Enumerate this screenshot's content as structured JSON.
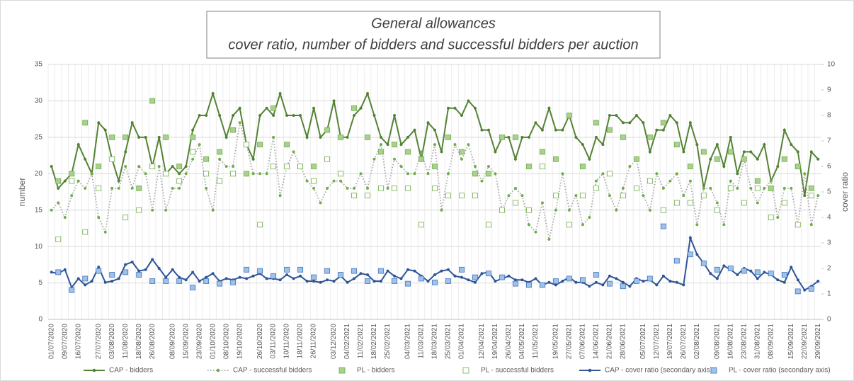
{
  "chart_data": {
    "type": "line",
    "title": [
      "General allowances",
      "cover ratio, number of bidders and successful bidders per auction"
    ],
    "y_label": "number",
    "y2_label": "cover ratio",
    "ylim": [
      0,
      35
    ],
    "yticks": [
      0,
      5,
      10,
      15,
      20,
      25,
      30,
      35
    ],
    "y2lim": [
      0,
      10
    ],
    "y2ticks": [
      0,
      1,
      2,
      3,
      4,
      5,
      6,
      7,
      8,
      9,
      10
    ],
    "grid": true,
    "legend": "bottom",
    "categories": [
      "01/07/2020",
      null,
      "09/07/2020",
      null,
      "16/07/2020",
      null,
      null,
      "27/07/2020",
      null,
      "03/08/2020",
      null,
      "11/08/2020",
      null,
      "18/08/2020",
      null,
      "26/08/2020",
      null,
      null,
      "08/09/2020",
      null,
      "15/09/2020",
      null,
      "23/09/2020",
      null,
      "01/10/2020",
      null,
      "08/10/2020",
      null,
      "19/10/2020",
      null,
      null,
      "26/10/2020",
      null,
      "03/11/2020",
      null,
      "10/11/2020",
      null,
      "18/11/2020",
      null,
      "26/11/2020",
      null,
      null,
      "03/12/2020",
      null,
      "04/02/2021",
      null,
      "11/02/2021",
      null,
      "18/02/2021",
      null,
      "25/02/2021",
      null,
      null,
      "04/03/2021",
      null,
      "11/03/2021",
      null,
      "18/03/2021",
      null,
      "25/03/2021",
      null,
      "01/04/2021",
      null,
      null,
      "12/04/2021",
      null,
      "19/04/2021",
      null,
      "26/04/2021",
      null,
      "04/05/2021",
      null,
      "11/05/2021",
      null,
      null,
      "19/05/2021",
      null,
      "27/05/2021",
      null,
      "07/06/2021",
      null,
      "14/06/2021",
      null,
      "21/06/2021",
      null,
      "28/06/2021",
      null,
      null,
      "05/07/2021",
      null,
      "12/07/2021",
      null,
      "19/07/2021",
      null,
      "26/07/2021",
      null,
      "02/08/2021",
      null,
      null,
      "09/08/2021",
      null,
      "16/08/2021",
      null,
      "23/08/2021",
      null,
      "31/08/2021",
      null,
      "08/09/2021",
      null,
      null,
      "15/09/2021",
      null,
      "22/09/2021",
      null,
      "29/09/2021"
    ],
    "series": [
      {
        "name": "CAP - bidders",
        "color": "#548235",
        "line": "solid",
        "marker": "circle",
        "marker_fill": "#548235",
        "values": [
          21,
          18,
          19,
          20,
          24,
          22,
          20,
          27,
          26,
          22,
          19,
          23,
          27,
          25,
          25,
          21,
          25,
          20,
          21,
          20,
          21,
          26,
          28,
          28,
          31,
          28,
          25,
          28,
          29,
          24,
          22,
          28,
          29,
          28,
          31,
          28,
          28,
          28,
          25,
          29,
          25,
          26,
          30,
          25,
          25,
          28,
          29,
          31,
          28,
          25,
          24,
          28,
          24,
          25,
          26,
          22,
          27,
          26,
          23,
          29,
          29,
          28,
          30,
          29,
          26,
          26,
          23,
          25,
          25,
          22,
          25,
          25,
          27,
          26,
          29,
          26,
          26,
          28,
          25,
          24,
          22,
          25,
          24,
          28,
          28,
          27,
          27,
          28,
          27,
          23,
          26,
          26,
          28,
          27,
          23,
          27,
          24,
          18,
          22,
          24,
          21,
          25,
          20,
          23,
          23,
          22,
          24,
          19,
          21,
          26,
          24,
          23,
          17,
          23,
          22
        ]
      },
      {
        "name": "CAP - successful bidders",
        "color": "#70ad47",
        "line_color": "#a6a6a6",
        "line": "dotted",
        "marker": "circle",
        "marker_fill": "#70ad47",
        "values": [
          15,
          16,
          14,
          17,
          19,
          18,
          20,
          14,
          12,
          18,
          18,
          21,
          18,
          21,
          20,
          15,
          21,
          15,
          18,
          18,
          20,
          22,
          24,
          18,
          15,
          22,
          21,
          21,
          27,
          24,
          20,
          20,
          20,
          25,
          17,
          21,
          23,
          21,
          19,
          18,
          16,
          18,
          19,
          19,
          18,
          18,
          20,
          18,
          22,
          24,
          18,
          22,
          21,
          20,
          20,
          23,
          20,
          24,
          15,
          20,
          24,
          22,
          24,
          21,
          19,
          21,
          20,
          15,
          17,
          18,
          17,
          13,
          12,
          16,
          11,
          15,
          20,
          15,
          17,
          13,
          14,
          19,
          20,
          17,
          15,
          18,
          21,
          22,
          17,
          15,
          20,
          18,
          19,
          20,
          17,
          19,
          13,
          18,
          18,
          16,
          13,
          19,
          18,
          22,
          18,
          16,
          18,
          19,
          14,
          18,
          18,
          13,
          20,
          13,
          17
        ]
      },
      {
        "name": "PL - bidders",
        "color": "#70ad47",
        "line": "none",
        "marker": "square",
        "marker_fill": "#a9d18e",
        "values": [
          null,
          19,
          null,
          20,
          null,
          27,
          null,
          21,
          null,
          25,
          null,
          25,
          null,
          18,
          null,
          30,
          null,
          25,
          null,
          21,
          null,
          25,
          null,
          22,
          null,
          23,
          null,
          26,
          null,
          20,
          null,
          24,
          null,
          29,
          null,
          24,
          null,
          21,
          null,
          21,
          null,
          26,
          null,
          25,
          null,
          29,
          null,
          25,
          null,
          23,
          null,
          24,
          null,
          23,
          null,
          22,
          null,
          21,
          null,
          25,
          null,
          23,
          null,
          20,
          null,
          20,
          null,
          25,
          null,
          25,
          null,
          21,
          null,
          23,
          null,
          22,
          null,
          28,
          null,
          21,
          null,
          27,
          null,
          26,
          null,
          25,
          null,
          22,
          null,
          25,
          null,
          27,
          null,
          24,
          null,
          21,
          null,
          23,
          null,
          22,
          null,
          23,
          null,
          22,
          null,
          19,
          null,
          18,
          null,
          22,
          null,
          21,
          null,
          18,
          null
        ]
      },
      {
        "name": "PL - successful bidders",
        "color": "#70ad47",
        "line": "none",
        "marker": "square",
        "marker_fill": "#ffffff",
        "values": [
          null,
          11,
          null,
          19,
          null,
          12,
          null,
          18,
          null,
          22,
          null,
          14,
          null,
          15,
          null,
          21,
          null,
          20,
          null,
          19,
          null,
          23,
          null,
          20,
          null,
          19,
          null,
          20,
          null,
          24,
          null,
          13,
          null,
          21,
          null,
          21,
          null,
          21,
          null,
          19,
          null,
          22,
          null,
          20,
          null,
          17,
          null,
          17,
          null,
          18,
          null,
          18,
          null,
          18,
          null,
          13,
          null,
          18,
          null,
          17,
          null,
          17,
          null,
          17,
          null,
          13,
          null,
          15,
          null,
          16,
          null,
          15,
          null,
          21,
          null,
          17,
          null,
          13,
          null,
          17,
          null,
          18,
          null,
          20,
          null,
          17,
          null,
          18,
          null,
          19,
          null,
          15,
          null,
          16,
          null,
          16,
          null,
          17,
          null,
          15,
          null,
          18,
          null,
          16,
          null,
          18,
          null,
          14,
          null,
          16,
          null,
          13,
          null,
          17,
          null
        ]
      },
      {
        "name": "CAP - cover ratio (secondary axis)",
        "color": "#2f5597",
        "line": "solid",
        "marker": "circle",
        "marker_fill": "#2f5597",
        "axis": "y2",
        "values": [
          1.85,
          1.8,
          1.95,
          1.25,
          1.6,
          1.35,
          1.5,
          2.05,
          1.45,
          1.5,
          1.6,
          2.15,
          2.25,
          1.9,
          1.95,
          2.35,
          2.0,
          1.65,
          1.95,
          1.65,
          1.55,
          1.85,
          1.5,
          1.65,
          1.8,
          1.5,
          1.6,
          1.55,
          1.65,
          1.6,
          1.7,
          1.8,
          1.6,
          1.6,
          1.55,
          1.75,
          1.6,
          1.7,
          1.5,
          1.5,
          1.45,
          1.55,
          1.5,
          1.7,
          1.45,
          1.6,
          1.8,
          1.75,
          1.5,
          1.5,
          1.9,
          1.7,
          1.6,
          1.95,
          1.9,
          1.7,
          1.5,
          1.75,
          1.9,
          1.95,
          1.7,
          1.65,
          1.55,
          1.45,
          1.8,
          1.85,
          1.5,
          1.6,
          1.7,
          1.55,
          1.55,
          1.45,
          1.6,
          1.35,
          1.45,
          1.35,
          1.5,
          1.65,
          1.45,
          1.45,
          1.3,
          1.45,
          1.35,
          1.7,
          1.6,
          1.45,
          1.3,
          1.6,
          1.5,
          1.55,
          1.35,
          1.7,
          1.5,
          1.45,
          1.35,
          3.2,
          2.55,
          2.2,
          1.8,
          1.6,
          2.1,
          1.95,
          1.75,
          2.0,
          1.9,
          1.6,
          1.85,
          1.75,
          1.55,
          1.45,
          2.05,
          1.55,
          1.15,
          1.3,
          1.5
        ]
      },
      {
        "name": "PL - cover ratio (secondary axis)",
        "color": "#4472c4",
        "line": "none",
        "marker": "square",
        "marker_fill": "#9dc3e6",
        "axis": "y2",
        "values": [
          null,
          1.85,
          null,
          1.15,
          null,
          1.6,
          null,
          1.9,
          null,
          1.75,
          null,
          1.85,
          null,
          1.75,
          null,
          1.5,
          null,
          1.5,
          null,
          1.5,
          null,
          1.25,
          null,
          1.5,
          null,
          1.4,
          null,
          1.45,
          null,
          1.95,
          null,
          1.9,
          null,
          1.7,
          null,
          1.95,
          null,
          1.95,
          null,
          1.65,
          null,
          1.9,
          null,
          1.75,
          null,
          1.9,
          null,
          1.5,
          null,
          1.9,
          null,
          1.5,
          null,
          1.4,
          null,
          1.6,
          null,
          1.45,
          null,
          1.5,
          null,
          1.95,
          null,
          1.65,
          null,
          1.8,
          null,
          1.65,
          null,
          1.4,
          null,
          1.35,
          null,
          1.35,
          null,
          1.5,
          null,
          1.6,
          null,
          1.55,
          null,
          1.75,
          null,
          1.4,
          null,
          1.3,
          null,
          1.5,
          null,
          1.6,
          null,
          3.65,
          null,
          2.3,
          null,
          2.55,
          null,
          2.2,
          null,
          1.95,
          null,
          2.0,
          null,
          1.9,
          null,
          1.85,
          null,
          1.8,
          null,
          1.75,
          null,
          1.1,
          null,
          1.2,
          null
        ]
      }
    ]
  }
}
